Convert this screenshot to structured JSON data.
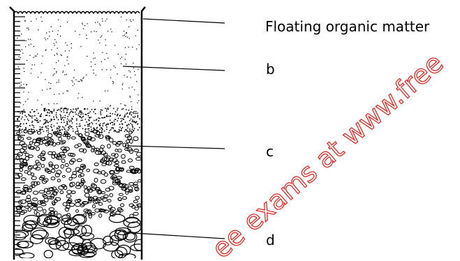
{
  "labels": [
    "Floating organic matter",
    "b",
    "c",
    "d"
  ],
  "watermark": "ee exams at www.free"
}
